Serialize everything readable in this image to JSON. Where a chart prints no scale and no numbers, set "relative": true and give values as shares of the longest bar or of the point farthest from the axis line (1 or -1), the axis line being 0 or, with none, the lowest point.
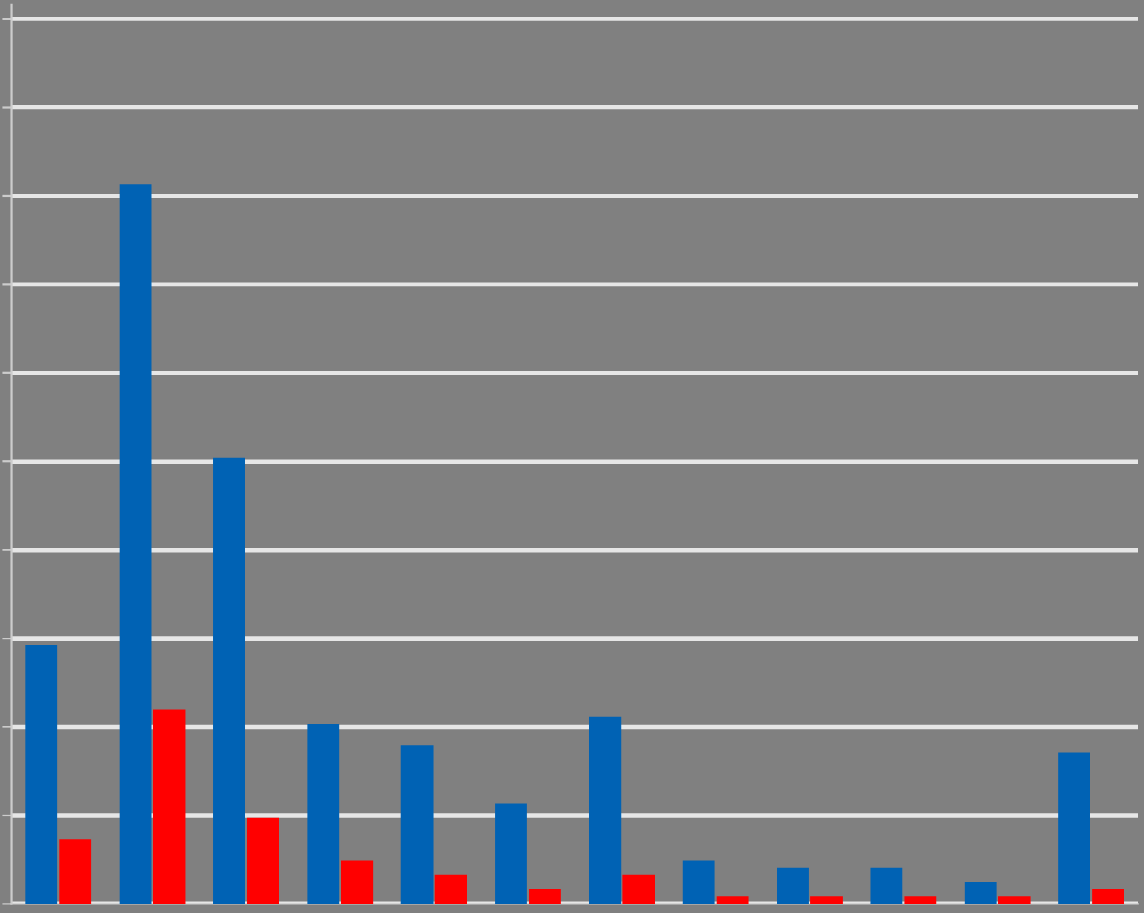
{
  "chart_data": {
    "type": "bar",
    "relative": true,
    "grid": "y",
    "categories": [
      null,
      null,
      null,
      null,
      null,
      null,
      null,
      null,
      null,
      null,
      null,
      null
    ],
    "series": [
      {
        "color": "#0062b4",
        "values": [
          0.36,
          1,
          0.62,
          0.25,
          0.22,
          0.14,
          0.26,
          0.06,
          0.05,
          0.05,
          0.03,
          0.21
        ]
      },
      {
        "color": "#ff0000",
        "values": [
          0.09,
          0.27,
          0.12,
          0.06,
          0.04,
          0.02,
          0.04,
          0.01,
          0.01,
          0.01,
          0.01,
          0.02
        ]
      }
    ]
  }
}
